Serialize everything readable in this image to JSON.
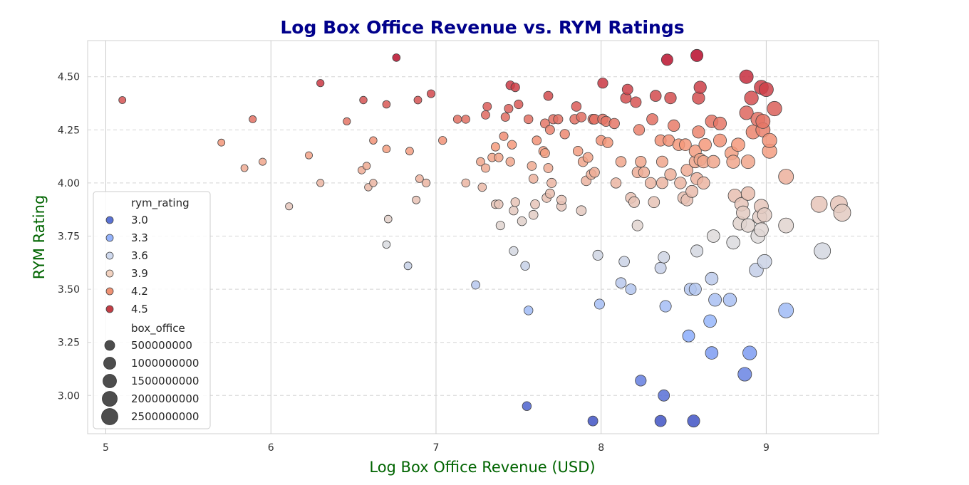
{
  "chart_data": {
    "type": "scatter",
    "title": "Log Box Office Revenue vs. RYM Ratings",
    "xlabel": "Log Box Office Revenue (USD)",
    "ylabel": "RYM Rating",
    "xlim": [
      4.89,
      9.68
    ],
    "ylim": [
      2.82,
      4.67
    ],
    "x_ticks": [
      5,
      6,
      7,
      8,
      9
    ],
    "x_tick_labels": [
      "5",
      "6",
      "7",
      "8",
      "9"
    ],
    "y_ticks": [
      3.0,
      3.25,
      3.5,
      3.75,
      4.0,
      4.25,
      4.5
    ],
    "y_tick_labels": [
      "3.00",
      "3.25",
      "3.50",
      "3.75",
      "4.00",
      "4.25",
      "4.50"
    ],
    "grid": true,
    "legend_position": "center-left",
    "hue": {
      "name": "rym_rating",
      "entries": [
        {
          "label": "3.0",
          "value": 3.0,
          "color": "#5a72d4"
        },
        {
          "label": "3.3",
          "value": 3.3,
          "color": "#93b2fb"
        },
        {
          "label": "3.6",
          "value": 3.6,
          "color": "#cfd9ee"
        },
        {
          "label": "3.9",
          "value": 3.9,
          "color": "#f2d2c0"
        },
        {
          "label": "4.2",
          "value": 4.2,
          "color": "#ef9274"
        },
        {
          "label": "4.5",
          "value": 4.5,
          "color": "#c33d45"
        }
      ]
    },
    "size": {
      "name": "box_office",
      "entries": [
        {
          "label": "500000000",
          "value": 500000000
        },
        {
          "label": "1000000000",
          "value": 1000000000
        },
        {
          "label": "1500000000",
          "value": 1500000000
        },
        {
          "label": "2000000000",
          "value": 2000000000
        },
        {
          "label": "2500000000",
          "value": 2500000000
        }
      ]
    },
    "points": [
      [
        5.1,
        4.39
      ],
      [
        5.7,
        4.19
      ],
      [
        5.84,
        4.07
      ],
      [
        5.89,
        4.3
      ],
      [
        5.95,
        4.1
      ],
      [
        6.11,
        3.89
      ],
      [
        6.23,
        4.13
      ],
      [
        6.3,
        4.0
      ],
      [
        6.3,
        4.47
      ],
      [
        6.46,
        4.29
      ],
      [
        6.55,
        4.06
      ],
      [
        6.56,
        4.39
      ],
      [
        6.58,
        4.08
      ],
      [
        6.59,
        3.98
      ],
      [
        6.62,
        4.0
      ],
      [
        6.62,
        4.2
      ],
      [
        6.7,
        4.16
      ],
      [
        6.7,
        4.37
      ],
      [
        6.71,
        3.83
      ],
      [
        6.7,
        3.71
      ],
      [
        6.76,
        4.59
      ],
      [
        6.83,
        3.61
      ],
      [
        6.84,
        4.15
      ],
      [
        6.88,
        3.92
      ],
      [
        6.89,
        4.39
      ],
      [
        6.9,
        4.02
      ],
      [
        6.94,
        4.0
      ],
      [
        6.97,
        4.42
      ],
      [
        7.04,
        4.2
      ],
      [
        7.13,
        4.3
      ],
      [
        7.18,
        4.3
      ],
      [
        7.18,
        4.0
      ],
      [
        7.24,
        3.52
      ],
      [
        7.27,
        4.1
      ],
      [
        7.28,
        3.98
      ],
      [
        7.3,
        4.07
      ],
      [
        7.3,
        4.32
      ],
      [
        7.31,
        4.36
      ],
      [
        7.34,
        4.12
      ],
      [
        7.36,
        4.17
      ],
      [
        7.36,
        3.9
      ],
      [
        7.38,
        3.9
      ],
      [
        7.38,
        4.12
      ],
      [
        7.39,
        3.8
      ],
      [
        7.41,
        4.22
      ],
      [
        7.42,
        4.31
      ],
      [
        7.44,
        4.35
      ],
      [
        7.45,
        4.1
      ],
      [
        7.45,
        4.46
      ],
      [
        7.46,
        4.18
      ],
      [
        7.47,
        3.68
      ],
      [
        7.47,
        3.87
      ],
      [
        7.48,
        3.91
      ],
      [
        7.48,
        4.45
      ],
      [
        7.5,
        4.37
      ],
      [
        7.52,
        3.82
      ],
      [
        7.54,
        3.61
      ],
      [
        7.55,
        2.95
      ],
      [
        7.56,
        3.4
      ],
      [
        7.56,
        4.3
      ],
      [
        7.58,
        4.08
      ],
      [
        7.59,
        4.02
      ],
      [
        7.59,
        3.85
      ],
      [
        7.6,
        3.9
      ],
      [
        7.61,
        4.2
      ],
      [
        7.65,
        4.15
      ],
      [
        7.66,
        4.14
      ],
      [
        7.66,
        4.28
      ],
      [
        7.67,
        3.93
      ],
      [
        7.68,
        4.41
      ],
      [
        7.68,
        4.07
      ],
      [
        7.69,
        4.25
      ],
      [
        7.69,
        3.95
      ],
      [
        7.7,
        4.0
      ],
      [
        7.71,
        4.3
      ],
      [
        7.74,
        4.3
      ],
      [
        7.76,
        3.89
      ],
      [
        7.76,
        3.92
      ],
      [
        7.78,
        4.23
      ],
      [
        7.84,
        4.3
      ],
      [
        7.85,
        4.36
      ],
      [
        7.86,
        4.15
      ],
      [
        7.88,
        3.87
      ],
      [
        7.88,
        4.31
      ],
      [
        7.89,
        4.1
      ],
      [
        7.91,
        4.01
      ],
      [
        7.92,
        4.12
      ],
      [
        7.94,
        4.04
      ],
      [
        7.95,
        2.88
      ],
      [
        7.95,
        4.3
      ],
      [
        7.96,
        4.05
      ],
      [
        7.96,
        4.3
      ],
      [
        7.98,
        3.66
      ],
      [
        7.99,
        3.43
      ],
      [
        8.0,
        4.2
      ],
      [
        8.01,
        4.47
      ],
      [
        8.01,
        4.3
      ],
      [
        8.03,
        4.29
      ],
      [
        8.04,
        4.19
      ],
      [
        8.08,
        4.28
      ],
      [
        8.09,
        4.0
      ],
      [
        8.12,
        3.53
      ],
      [
        8.12,
        4.1
      ],
      [
        8.14,
        3.63
      ],
      [
        8.15,
        4.4
      ],
      [
        8.16,
        4.44
      ],
      [
        8.18,
        3.5
      ],
      [
        8.18,
        3.93
      ],
      [
        8.2,
        3.91
      ],
      [
        8.21,
        4.38
      ],
      [
        8.22,
        3.8
      ],
      [
        8.22,
        4.05
      ],
      [
        8.23,
        4.25
      ],
      [
        8.24,
        4.1
      ],
      [
        8.24,
        3.07
      ],
      [
        8.26,
        4.05
      ],
      [
        8.3,
        4.0
      ],
      [
        8.31,
        4.3
      ],
      [
        8.32,
        3.91
      ],
      [
        8.33,
        4.41
      ],
      [
        8.36,
        2.88
      ],
      [
        8.36,
        4.2
      ],
      [
        8.36,
        3.6
      ],
      [
        8.37,
        4.1
      ],
      [
        8.37,
        4.0
      ],
      [
        8.38,
        3.65
      ],
      [
        8.38,
        3.0
      ],
      [
        8.39,
        3.42
      ],
      [
        8.4,
        4.58
      ],
      [
        8.41,
        4.2
      ],
      [
        8.42,
        4.4
      ],
      [
        8.42,
        4.04
      ],
      [
        8.44,
        4.27
      ],
      [
        8.47,
        4.18
      ],
      [
        8.48,
        4.0
      ],
      [
        8.5,
        3.93
      ],
      [
        8.51,
        4.18
      ],
      [
        8.52,
        4.06
      ],
      [
        8.52,
        3.92
      ],
      [
        8.53,
        3.28
      ],
      [
        8.54,
        3.5
      ],
      [
        8.55,
        3.96
      ],
      [
        8.56,
        2.88
      ],
      [
        8.57,
        4.1
      ],
      [
        8.57,
        4.15
      ],
      [
        8.57,
        3.5
      ],
      [
        8.58,
        4.02
      ],
      [
        8.58,
        4.6
      ],
      [
        8.58,
        3.68
      ],
      [
        8.59,
        4.4
      ],
      [
        8.59,
        4.24
      ],
      [
        8.6,
        4.45
      ],
      [
        8.6,
        4.11
      ],
      [
        8.62,
        4.1
      ],
      [
        8.62,
        4.0
      ],
      [
        8.63,
        4.18
      ],
      [
        8.66,
        3.35
      ],
      [
        8.67,
        4.29
      ],
      [
        8.67,
        3.2
      ],
      [
        8.67,
        3.55
      ],
      [
        8.68,
        3.75
      ],
      [
        8.68,
        4.1
      ],
      [
        8.69,
        3.45
      ],
      [
        8.72,
        4.2
      ],
      [
        8.72,
        4.28
      ],
      [
        8.78,
        3.45
      ],
      [
        8.79,
        4.14
      ],
      [
        8.8,
        4.1
      ],
      [
        8.8,
        3.72
      ],
      [
        8.81,
        3.94
      ],
      [
        8.83,
        4.18
      ],
      [
        8.84,
        3.81
      ],
      [
        8.85,
        3.9
      ],
      [
        8.86,
        3.86
      ],
      [
        8.87,
        3.1
      ],
      [
        8.88,
        4.33
      ],
      [
        8.88,
        4.5
      ],
      [
        8.89,
        4.1
      ],
      [
        8.89,
        3.95
      ],
      [
        8.89,
        3.8
      ],
      [
        8.9,
        3.2
      ],
      [
        8.91,
        4.4
      ],
      [
        8.92,
        4.24
      ],
      [
        8.94,
        3.59
      ],
      [
        8.95,
        3.75
      ],
      [
        8.95,
        4.3
      ],
      [
        8.96,
        3.84
      ],
      [
        8.97,
        4.45
      ],
      [
        8.97,
        3.89
      ],
      [
        8.97,
        3.78
      ],
      [
        8.98,
        4.25
      ],
      [
        8.98,
        4.29
      ],
      [
        8.99,
        3.63
      ],
      [
        8.99,
        3.85
      ],
      [
        9.0,
        4.44
      ],
      [
        9.02,
        4.15
      ],
      [
        9.02,
        4.2
      ],
      [
        9.05,
        4.35
      ],
      [
        9.12,
        4.03
      ],
      [
        9.12,
        3.4
      ],
      [
        9.12,
        3.8
      ],
      [
        9.32,
        3.9
      ],
      [
        9.34,
        3.68
      ],
      [
        9.44,
        3.9
      ],
      [
        9.46,
        3.86
      ]
    ]
  }
}
